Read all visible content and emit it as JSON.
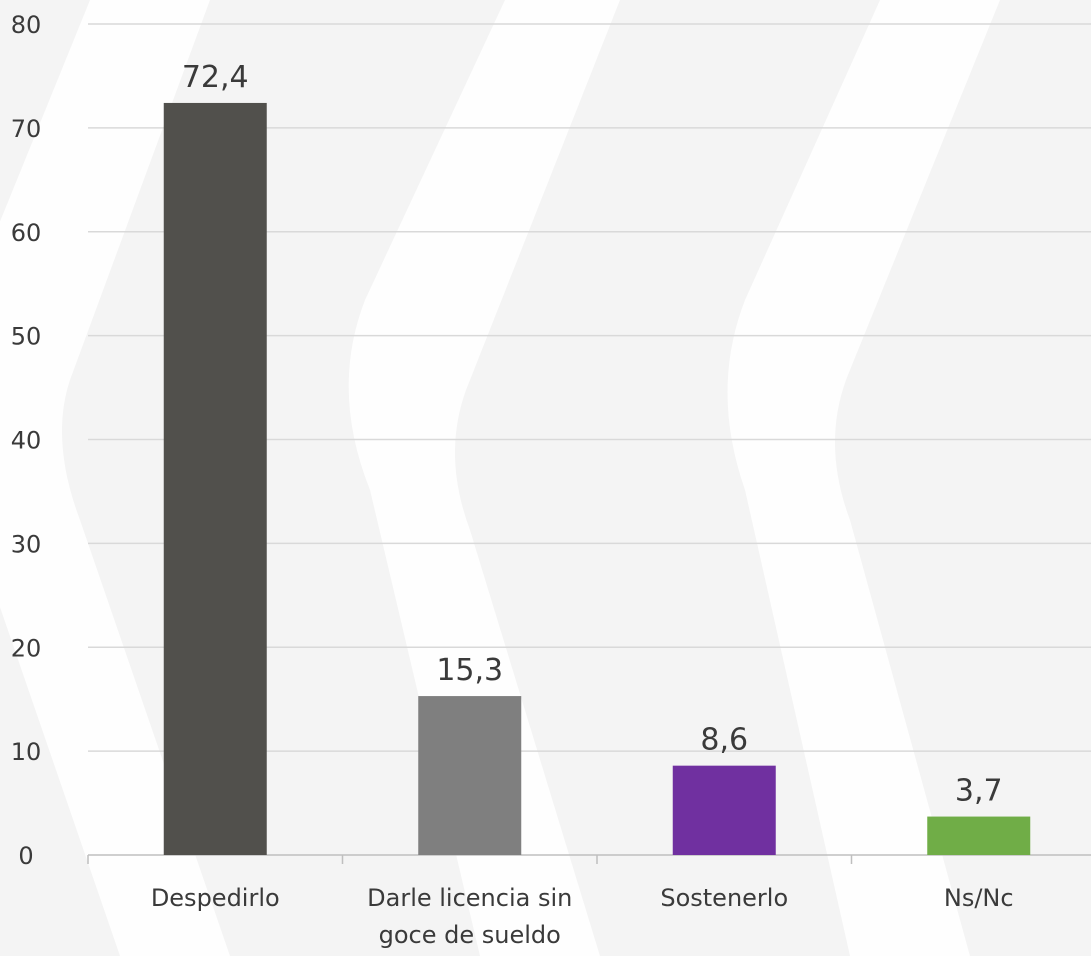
{
  "chart_data": {
    "type": "bar",
    "categories": [
      [
        "Despedirlo"
      ],
      [
        "Darle licencia sin",
        "goce de sueldo"
      ],
      [
        "Sostenerlo"
      ],
      [
        "Ns/Nc"
      ]
    ],
    "values": [
      72.4,
      15.3,
      8.6,
      3.7
    ],
    "data_labels": [
      "72,4",
      "15,3",
      "8,6",
      "3,7"
    ],
    "bar_colors": [
      "#51504c",
      "#7f7f7f",
      "#7030a0",
      "#70ad47"
    ],
    "y_ticks": [
      0,
      10,
      20,
      30,
      40,
      50,
      60,
      70,
      80
    ],
    "ylim": [
      0,
      80
    ],
    "grid": true,
    "legend": "none",
    "title": "",
    "xlabel": "",
    "ylabel": ""
  },
  "colors": {
    "background": "#f4f4f4",
    "chevron_watermark": "#ffffff",
    "gridline": "#d9d9d9",
    "axis": "#bfbfbf",
    "text": "#3a3a3a"
  }
}
